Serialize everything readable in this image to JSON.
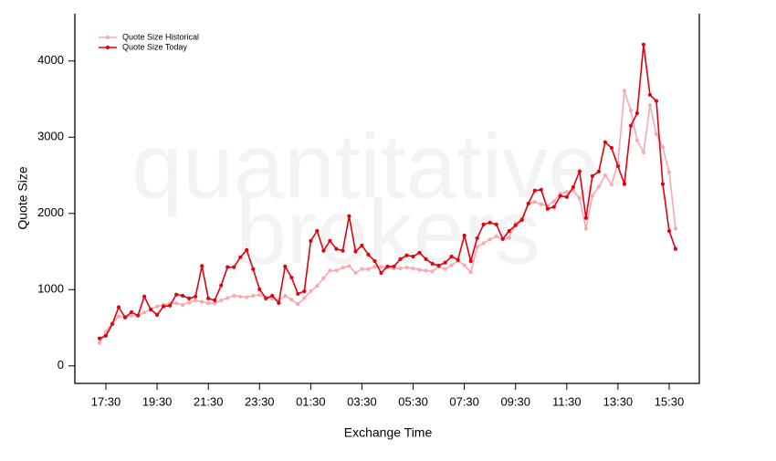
{
  "chart_data": {
    "type": "line",
    "x_label": "Exchange Time",
    "y_label": "Quote Size",
    "watermark": [
      "quantitative",
      "brokers"
    ],
    "categories": [
      null,
      "17:30",
      null,
      null,
      null,
      null,
      null,
      null,
      null,
      "19:30",
      null,
      null,
      null,
      null,
      null,
      null,
      null,
      "21:30",
      null,
      null,
      null,
      null,
      null,
      null,
      null,
      "23:30",
      null,
      null,
      null,
      null,
      null,
      null,
      null,
      "01:30",
      null,
      null,
      null,
      null,
      null,
      null,
      null,
      "03:30",
      null,
      null,
      null,
      null,
      null,
      null,
      null,
      "05:30",
      null,
      null,
      null,
      null,
      null,
      null,
      null,
      "07:30",
      null,
      null,
      null,
      null,
      null,
      null,
      null,
      "09:30",
      null,
      null,
      null,
      null,
      null,
      null,
      null,
      "11:30",
      null,
      null,
      null,
      null,
      null,
      null,
      null,
      "13:30",
      null,
      null,
      null,
      null,
      null,
      null,
      null,
      "15:30",
      null
    ],
    "series": [
      {
        "name": "Quote Size Historical",
        "color": "#f7a9b0",
        "values": [
          300,
          450,
          560,
          650,
          640,
          660,
          660,
          700,
          740,
          780,
          800,
          820,
          820,
          800,
          830,
          860,
          840,
          820,
          820,
          860,
          890,
          920,
          910,
          900,
          920,
          930,
          900,
          880,
          860,
          920,
          870,
          810,
          890,
          980,
          1050,
          1150,
          1250,
          1250,
          1290,
          1310,
          1220,
          1270,
          1270,
          1300,
          1300,
          1290,
          1280,
          1280,
          1290,
          1280,
          1260,
          1250,
          1240,
          1300,
          1270,
          1320,
          1380,
          1320,
          1230,
          1560,
          1610,
          1660,
          1700,
          1660,
          1680,
          1870,
          1930,
          2130,
          2150,
          2120,
          2100,
          2160,
          2260,
          2280,
          2300,
          2200,
          1800,
          2230,
          2350,
          2500,
          2380,
          2660,
          3610,
          3350,
          2960,
          2800,
          3420,
          3040,
          2870,
          2540,
          1800
        ]
      },
      {
        "name": "Quote Size Today",
        "color": "#e3000f",
        "values": [
          360,
          395,
          550,
          770,
          635,
          705,
          660,
          910,
          740,
          670,
          780,
          790,
          935,
          920,
          885,
          910,
          1310,
          885,
          860,
          1055,
          1295,
          1295,
          1425,
          1520,
          1270,
          1005,
          885,
          920,
          825,
          1305,
          1160,
          945,
          980,
          1640,
          1770,
          1510,
          1640,
          1535,
          1510,
          1965,
          1500,
          1580,
          1460,
          1375,
          1220,
          1305,
          1305,
          1400,
          1450,
          1435,
          1485,
          1400,
          1340,
          1315,
          1355,
          1435,
          1390,
          1710,
          1375,
          1675,
          1855,
          1880,
          1855,
          1665,
          1770,
          1845,
          1915,
          2130,
          2300,
          2310,
          2060,
          2085,
          2230,
          2215,
          2345,
          2550,
          1940,
          2490,
          2550,
          2935,
          2860,
          2620,
          2385,
          3150,
          3315,
          4215,
          3555,
          3475,
          2385,
          1770,
          1535
        ]
      }
    ],
    "ylim": [
      -230,
      4620
    ],
    "yticks": [
      0,
      1000,
      2000,
      3000,
      4000
    ],
    "grid": false,
    "legend": "top-left"
  }
}
